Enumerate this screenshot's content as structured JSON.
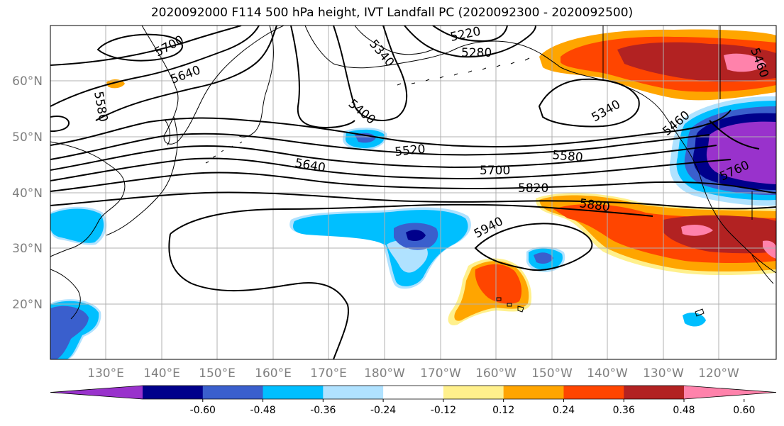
{
  "title": "2020092000 F114 500 hPa height, IVT Landfall PC (2020092300 - 2020092500)",
  "lat_ticks": [
    "60°N",
    "50°N",
    "40°N",
    "30°N",
    "20°N"
  ],
  "lon_ticks": [
    "130°E",
    "140°E",
    "150°E",
    "160°E",
    "170°E",
    "180°W",
    "170°W",
    "160°W",
    "150°W",
    "140°W",
    "130°W",
    "120°W"
  ],
  "colorbar": {
    "colors": [
      "#9932cc",
      "#00008b",
      "#3a5fcd",
      "#00bfff",
      "#b0e2ff",
      "#ffffff",
      "#fff08c",
      "#ffa500",
      "#ff4500",
      "#b22222",
      "#ff82ab"
    ],
    "tick_labels": [
      "-0.60",
      "-0.48",
      "-0.36",
      "-0.24",
      "-0.12",
      "0.12",
      "0.24",
      "0.36",
      "0.48",
      "0.60"
    ]
  },
  "contour_labels": [
    "5700",
    "5640",
    "5580",
    "5400",
    "5340",
    "5220",
    "5280",
    "5520",
    "5640",
    "5580",
    "5700",
    "5820",
    "5880",
    "5940",
    "5340",
    "5460",
    "5760",
    "5460"
  ]
}
